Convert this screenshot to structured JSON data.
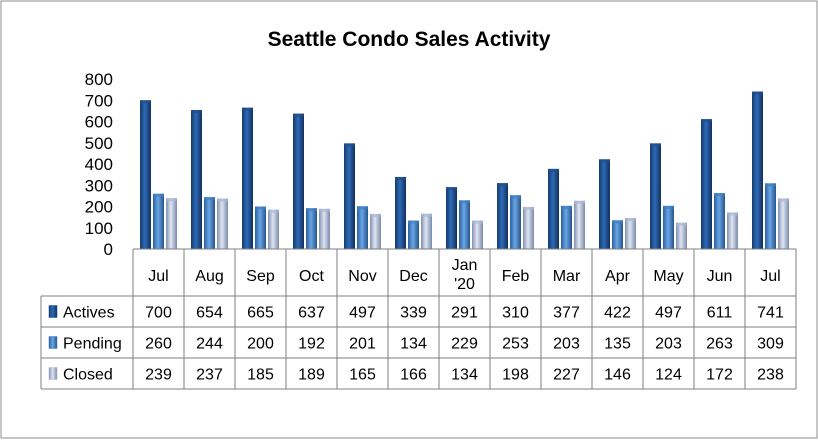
{
  "chart_data": {
    "type": "bar",
    "title": "Seattle Condo Sales Activity",
    "categories": [
      "Jul",
      "Aug",
      "Sep",
      "Oct",
      "Nov",
      "Dec",
      "Jan\n'20",
      "Feb",
      "Mar",
      "Apr",
      "May",
      "Jun",
      "Jul"
    ],
    "series": [
      {
        "name": "Actives",
        "values": [
          700,
          654,
          665,
          637,
          497,
          339,
          291,
          310,
          377,
          422,
          497,
          611,
          741
        ],
        "color": "#1f4e8c"
      },
      {
        "name": "Pending",
        "values": [
          260,
          244,
          200,
          192,
          201,
          134,
          229,
          253,
          203,
          135,
          203,
          263,
          309
        ],
        "color": "#3f7fc4"
      },
      {
        "name": "Closed",
        "values": [
          239,
          237,
          185,
          189,
          165,
          166,
          134,
          198,
          227,
          146,
          124,
          172,
          238
        ],
        "color": "#a9b8d6"
      }
    ],
    "yticks": [
      0,
      100,
      200,
      300,
      400,
      500,
      600,
      700,
      800
    ],
    "ylim": [
      0,
      800
    ],
    "grid": false,
    "legend": "data-table-left",
    "data_table": true
  }
}
